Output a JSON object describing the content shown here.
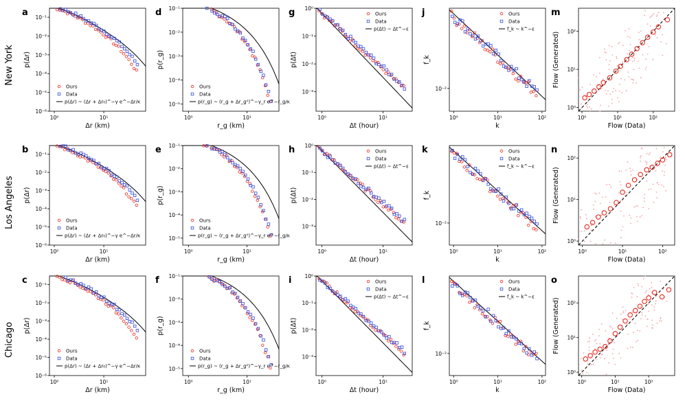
{
  "cities": [
    "New York",
    "Los Angeles",
    "Chicago"
  ],
  "legend": {
    "ours": "Ours",
    "data": "Data"
  },
  "colors": {
    "ours": "#e8281e",
    "data": "#2f49d8",
    "fit": "#000000",
    "cloud": "#f3a3a3"
  },
  "chart_data": [
    {
      "id": "a",
      "type": "scatter",
      "xlabel": "Δr (km)",
      "ylabel": "p(Δr)",
      "xscale": "log",
      "yscale": "log",
      "xlim": [
        0.8,
        70
      ],
      "ylim": [
        1e-06,
        0.3
      ],
      "xticks": [
        1,
        10
      ],
      "yticks": [
        1e-06,
        1e-05,
        0.0001,
        0.001,
        0.01,
        0.1
      ],
      "fit_label": "p(Δr) ~ (Δr + Δr₀)^−γ e^−Δr/κ",
      "fit": {
        "kind": "trunc",
        "a": 0.35,
        "x0": 1,
        "g": 1.55,
        "k": 40
      },
      "series": [
        {
          "name": "Ours",
          "dist": {
            "kind": "trunc",
            "a": 0.33,
            "x0": 1,
            "g": 1.6,
            "k": 16
          }
        },
        {
          "name": "Data",
          "dist": {
            "kind": "trunc",
            "a": 0.38,
            "x0": 1,
            "g": 1.5,
            "k": 20
          }
        }
      ]
    },
    {
      "id": "d",
      "type": "scatter",
      "xlabel": "r_g (km)",
      "ylabel": "p(r_g)",
      "xscale": "log",
      "yscale": "log",
      "xlim": [
        0.8,
        35
      ],
      "ylim": [
        5e-06,
        0.1
      ],
      "xticks": [
        1,
        10
      ],
      "yticks": [
        1e-05,
        0.0001,
        0.001,
        0.01,
        0.1
      ],
      "fit_label": "p(r_g) ~ (r_g + Δr_g⁰)^−γ_r e^−r_g/κ",
      "fit": {
        "kind": "trunc",
        "a": 0.2,
        "x0": 1,
        "g": 0.8,
        "k": 6
      },
      "series": [
        {
          "name": "Ours",
          "dist": {
            "kind": "trunc",
            "a": 0.2,
            "x0": 1,
            "g": 0.7,
            "k": 3
          }
        },
        {
          "name": "Data",
          "dist": {
            "kind": "trunc",
            "a": 0.21,
            "x0": 1,
            "g": 0.7,
            "k": 3.2
          }
        }
      ]
    },
    {
      "id": "g",
      "type": "scatter",
      "xlabel": "Δt (hour)",
      "ylabel": "p(Δt)",
      "xscale": "log",
      "yscale": "log",
      "xlim": [
        0.8,
        30
      ],
      "ylim": [
        0.0002,
        1
      ],
      "xticks": [
        1,
        10
      ],
      "yticks": [
        0.001,
        0.01,
        0.1,
        1
      ],
      "fit_label": "p(Δt) ~ Δt^−ε",
      "fit": {
        "kind": "power",
        "a": 0.65,
        "e": 2.3
      },
      "series": [
        {
          "name": "Ours",
          "dist": {
            "kind": "power",
            "a": 0.65,
            "e": 2.0
          }
        },
        {
          "name": "Data",
          "dist": {
            "kind": "power",
            "a": 0.66,
            "e": 1.95
          }
        }
      ]
    },
    {
      "id": "j",
      "type": "scatter",
      "xlabel": "k",
      "ylabel": "f_k",
      "xscale": "log",
      "yscale": "log",
      "xlim": [
        0.8,
        120
      ],
      "ylim": [
        0.004,
        0.25
      ],
      "xticks": [
        1,
        10,
        100
      ],
      "yticks": [
        0.01
      ],
      "fit_label": "f_k ~ k^−ε",
      "fit": {
        "kind": "power",
        "a": 0.2,
        "e": 0.72
      },
      "series": [
        {
          "name": "Ours",
          "dist": {
            "kind": "power",
            "a": 0.17,
            "e": 0.7
          }
        },
        {
          "name": "Data",
          "dist": {
            "kind": "power",
            "a": 0.18,
            "e": 0.7
          }
        }
      ]
    },
    {
      "id": "m",
      "type": "scatter",
      "xlabel": "Flow (Data)",
      "ylabel": "Flow (Generated)",
      "xscale": "log",
      "yscale": "log",
      "xlim": [
        0.8,
        400
      ],
      "ylim": [
        0.8,
        400
      ],
      "xticks": [
        1,
        10,
        100
      ],
      "yticks": [
        1,
        10,
        100
      ],
      "points": [
        [
          1.2,
          1.8
        ],
        [
          1.6,
          2.2
        ],
        [
          2.2,
          2.7
        ],
        [
          3,
          3.5
        ],
        [
          4,
          4.5
        ],
        [
          6,
          6
        ],
        [
          9,
          9
        ],
        [
          12,
          12
        ],
        [
          18,
          18
        ],
        [
          25,
          25
        ],
        [
          35,
          35
        ],
        [
          50,
          50
        ],
        [
          70,
          70
        ],
        [
          100,
          95
        ],
        [
          140,
          130
        ],
        [
          250,
          200
        ]
      ]
    },
    {
      "id": "b",
      "type": "scatter",
      "xlabel": "Δr (km)",
      "ylabel": "p(Δr)",
      "xscale": "log",
      "yscale": "log",
      "xlim": [
        0.8,
        70
      ],
      "ylim": [
        1e-06,
        0.3
      ],
      "xticks": [
        1,
        10
      ],
      "yticks": [
        1e-06,
        1e-05,
        0.0001,
        0.001,
        0.01,
        0.1
      ],
      "fit_label": "p(Δr) ~ (Δr + Δr₀)^−γ e^−Δr/κ",
      "fit": {
        "kind": "trunc",
        "a": 0.35,
        "x0": 1,
        "g": 1.55,
        "k": 40
      },
      "series": [
        {
          "name": "Ours",
          "dist": {
            "kind": "trunc",
            "a": 0.33,
            "x0": 1,
            "g": 1.6,
            "k": 16
          }
        },
        {
          "name": "Data",
          "dist": {
            "kind": "trunc",
            "a": 0.38,
            "x0": 1,
            "g": 1.5,
            "k": 20
          }
        }
      ]
    },
    {
      "id": "e",
      "type": "scatter",
      "xlabel": "r_g (km)",
      "ylabel": "p(r_g)",
      "xscale": "log",
      "yscale": "log",
      "xlim": [
        0.8,
        35
      ],
      "ylim": [
        5e-06,
        0.1
      ],
      "xticks": [
        1,
        10
      ],
      "yticks": [
        1e-05,
        0.0001,
        0.001,
        0.01,
        0.1
      ],
      "fit_label": "p(r_g) ~ (r_g + Δr_g⁰)^−γ_r e^−r_g/κ",
      "fit": {
        "kind": "trunc",
        "a": 0.2,
        "x0": 1,
        "g": 0.8,
        "k": 6
      },
      "series": [
        {
          "name": "Ours",
          "dist": {
            "kind": "trunc",
            "a": 0.2,
            "x0": 1,
            "g": 0.7,
            "k": 3
          }
        },
        {
          "name": "Data",
          "dist": {
            "kind": "trunc",
            "a": 0.21,
            "x0": 1,
            "g": 0.7,
            "k": 3.2
          }
        }
      ]
    },
    {
      "id": "h",
      "type": "scatter",
      "xlabel": "Δt (hour)",
      "ylabel": "p(Δt)",
      "xscale": "log",
      "yscale": "log",
      "xlim": [
        0.8,
        30
      ],
      "ylim": [
        0.0002,
        1
      ],
      "xticks": [
        1,
        10
      ],
      "yticks": [
        0.001,
        0.01,
        0.1,
        1
      ],
      "fit_label": "p(Δt) ~ Δt^−ε",
      "fit": {
        "kind": "power",
        "a": 0.65,
        "e": 2.3
      },
      "series": [
        {
          "name": "Ours",
          "dist": {
            "kind": "power",
            "a": 0.65,
            "e": 2.0
          }
        },
        {
          "name": "Data",
          "dist": {
            "kind": "power",
            "a": 0.66,
            "e": 1.95
          }
        }
      ]
    },
    {
      "id": "k",
      "type": "scatter",
      "xlabel": "k",
      "ylabel": "f_k",
      "xscale": "log",
      "yscale": "log",
      "xlim": [
        0.8,
        120
      ],
      "ylim": [
        0.004,
        0.25
      ],
      "xticks": [
        1,
        10,
        100
      ],
      "yticks": [
        0.01
      ],
      "fit_label": "f_k ~ k^−ε",
      "fit": {
        "kind": "power",
        "a": 0.2,
        "e": 0.72
      },
      "series": [
        {
          "name": "Ours",
          "dist": {
            "kind": "power",
            "a": 0.17,
            "e": 0.7
          }
        },
        {
          "name": "Data",
          "dist": {
            "kind": "power",
            "a": 0.18,
            "e": 0.7
          }
        }
      ]
    },
    {
      "id": "n",
      "type": "scatter",
      "xlabel": "Flow (Data)",
      "ylabel": "Flow (Generated)",
      "xscale": "log",
      "yscale": "log",
      "xlim": [
        0.8,
        200
      ],
      "ylim": [
        0.8,
        200
      ],
      "xticks": [
        1,
        10,
        100
      ],
      "yticks": [
        1,
        10,
        100
      ],
      "points": [
        [
          1.3,
          2.2
        ],
        [
          1.8,
          2.8
        ],
        [
          2.5,
          3.8
        ],
        [
          3.5,
          4.8
        ],
        [
          5,
          6
        ],
        [
          7,
          8.5
        ],
        [
          10,
          15
        ],
        [
          14,
          22
        ],
        [
          20,
          30
        ],
        [
          28,
          40
        ],
        [
          40,
          52
        ],
        [
          55,
          60
        ],
        [
          75,
          75
        ],
        [
          100,
          90
        ],
        [
          150,
          120
        ]
      ]
    },
    {
      "id": "c",
      "type": "scatter",
      "xlabel": "Δr (km)",
      "ylabel": "p(Δr)",
      "xscale": "log",
      "yscale": "log",
      "xlim": [
        0.8,
        70
      ],
      "ylim": [
        1e-06,
        0.3
      ],
      "xticks": [
        1,
        10
      ],
      "yticks": [
        1e-06,
        1e-05,
        0.0001,
        0.001,
        0.01,
        0.1
      ],
      "fit_label": "p(Δr) ~ (Δr + Δr₀)^−γ e^−Δr/κ",
      "fit": {
        "kind": "trunc",
        "a": 0.35,
        "x0": 1,
        "g": 1.55,
        "k": 40
      },
      "series": [
        {
          "name": "Ours",
          "dist": {
            "kind": "trunc",
            "a": 0.33,
            "x0": 1,
            "g": 1.6,
            "k": 16
          }
        },
        {
          "name": "Data",
          "dist": {
            "kind": "trunc",
            "a": 0.38,
            "x0": 1,
            "g": 1.5,
            "k": 20
          }
        }
      ]
    },
    {
      "id": "f",
      "type": "scatter",
      "xlabel": "r_g (km)",
      "ylabel": "p(r_g)",
      "xscale": "log",
      "yscale": "log",
      "xlim": [
        0.8,
        35
      ],
      "ylim": [
        5e-06,
        0.1
      ],
      "xticks": [
        1,
        10
      ],
      "yticks": [
        1e-05,
        0.0001,
        0.001,
        0.01,
        0.1
      ],
      "fit_label": "p(r_g) ~ (r_g + Δr_g⁰)^−γ_r e^−r_g/κ",
      "fit": {
        "kind": "trunc",
        "a": 0.2,
        "x0": 1,
        "g": 0.8,
        "k": 6
      },
      "series": [
        {
          "name": "Ours",
          "dist": {
            "kind": "trunc",
            "a": 0.2,
            "x0": 1,
            "g": 0.7,
            "k": 3
          }
        },
        {
          "name": "Data",
          "dist": {
            "kind": "trunc",
            "a": 0.21,
            "x0": 1,
            "g": 0.7,
            "k": 3.2
          }
        }
      ]
    },
    {
      "id": "i",
      "type": "scatter",
      "xlabel": "Δt (hour)",
      "ylabel": "p(Δt)",
      "xscale": "log",
      "yscale": "log",
      "xlim": [
        0.8,
        30
      ],
      "ylim": [
        0.0002,
        1
      ],
      "xticks": [
        1,
        10
      ],
      "yticks": [
        0.001,
        0.01,
        0.1,
        1
      ],
      "fit_label": "p(Δt) ~ Δt^−ε",
      "fit": {
        "kind": "power",
        "a": 0.65,
        "e": 2.3
      },
      "series": [
        {
          "name": "Ours",
          "dist": {
            "kind": "power",
            "a": 0.65,
            "e": 2.0
          }
        },
        {
          "name": "Data",
          "dist": {
            "kind": "power",
            "a": 0.66,
            "e": 1.95
          }
        }
      ]
    },
    {
      "id": "l",
      "type": "scatter",
      "xlabel": "k",
      "ylabel": "f_k",
      "xscale": "log",
      "yscale": "log",
      "xlim": [
        0.8,
        120
      ],
      "ylim": [
        0.004,
        0.25
      ],
      "xticks": [
        1,
        10,
        100
      ],
      "yticks": [
        0.01
      ],
      "fit_label": "f_k ~ k^−ε",
      "fit": {
        "kind": "power",
        "a": 0.2,
        "e": 0.72
      },
      "series": [
        {
          "name": "Ours",
          "dist": {
            "kind": "power",
            "a": 0.17,
            "e": 0.7
          }
        },
        {
          "name": "Data",
          "dist": {
            "kind": "power",
            "a": 0.18,
            "e": 0.7
          }
        }
      ]
    },
    {
      "id": "o",
      "type": "scatter",
      "xlabel": "Flow (Data)",
      "ylabel": "Flow (Generated)",
      "xscale": "log",
      "yscale": "log",
      "xlim": [
        0.8,
        600
      ],
      "ylim": [
        0.8,
        600
      ],
      "xticks": [
        1,
        10,
        100
      ],
      "yticks": [
        1,
        10,
        100
      ],
      "points": [
        [
          1.3,
          2.4
        ],
        [
          1.8,
          3
        ],
        [
          2.5,
          3.8
        ],
        [
          3.5,
          4.6
        ],
        [
          5,
          5.5
        ],
        [
          7,
          8
        ],
        [
          10,
          13
        ],
        [
          14,
          20
        ],
        [
          20,
          30
        ],
        [
          28,
          45
        ],
        [
          40,
          60
        ],
        [
          55,
          80
        ],
        [
          75,
          110
        ],
        [
          100,
          140
        ],
        [
          150,
          200
        ],
        [
          250,
          150
        ],
        [
          400,
          240
        ]
      ]
    }
  ]
}
